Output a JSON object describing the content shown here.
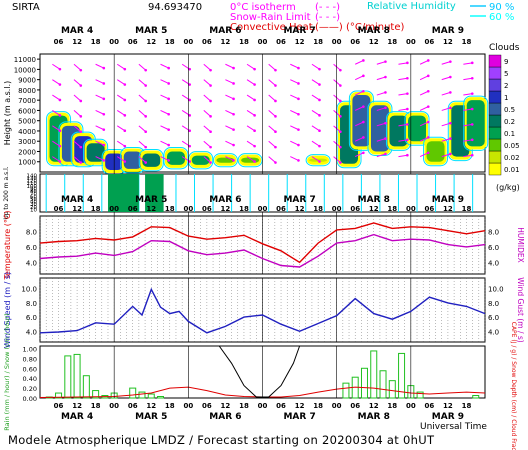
{
  "header": {
    "site": "SIRTA",
    "code": "94.693470",
    "legend": [
      {
        "label": "0°C isotherm",
        "style": "(- - -)",
        "color": "#ff00ff"
      },
      {
        "label": "Snow-Rain Limit",
        "style": "(- - -)",
        "color": "#ff00ff"
      },
      {
        "label": "Convective Heat.",
        "style": "(——) (°C/minute)",
        "color": "#e00000"
      }
    ],
    "humidity_title": "Relative Humidity",
    "humidity_levels": [
      {
        "value": "90 %",
        "color": "#00c8ff"
      },
      {
        "value": "60 %",
        "color": "#00ffff"
      }
    ]
  },
  "time_axis": {
    "day_labels": [
      "MAR 4",
      "MAR 5",
      "MAR 6",
      "MAR 7",
      "MAR 8",
      "MAR 9"
    ],
    "hour_labels": [
      "06",
      "12",
      "18",
      "00",
      "06",
      "12",
      "18",
      "00",
      "06",
      "12",
      "18",
      "00",
      "06",
      "12",
      "18",
      "00",
      "06",
      "12",
      "18",
      "00",
      "06",
      "12",
      "18"
    ],
    "xlabel": "Universal Time"
  },
  "footer": {
    "text": "Modele Atmospherique LMDZ / Forecast starting on 20200304 at 0hUT"
  },
  "chart_data": [
    {
      "type": "heatmap",
      "name": "clouds",
      "ylabel": "Height (m a.s.l.)",
      "yticks": [
        1000,
        2000,
        3000,
        4000,
        5000,
        6000,
        7000,
        8000,
        9000,
        10000,
        11000
      ],
      "ylim": [
        0,
        11500
      ],
      "low_ylabel": "Up to 200 m a.s.l.",
      "low_yticks": [
        10,
        20,
        30,
        40,
        50,
        60,
        70,
        80,
        90,
        100,
        110,
        120,
        130,
        140
      ],
      "colorbar_title": "Clouds",
      "colorbar_unit": "(g/kg)",
      "colorbar_ticks": [
        "0.01",
        "0.02",
        "0.05",
        "0.1",
        "0.2",
        "0.5",
        "1",
        "2",
        "5",
        "9"
      ],
      "colorbar_colors": [
        "#ffff00",
        "#c8e600",
        "#60c800",
        "#00a050",
        "#007860",
        "#3060a0",
        "#2030c0",
        "#6040e0",
        "#a040ff",
        "#e000e0"
      ],
      "cloud_cells": [
        {
          "t": 6,
          "z0": 1000,
          "z1": 5500,
          "level": 3
        },
        {
          "t": 10,
          "z0": 1000,
          "z1": 4500,
          "level": 5
        },
        {
          "t": 14,
          "z0": 900,
          "z1": 3500,
          "level": 6
        },
        {
          "t": 18,
          "z0": 1000,
          "z1": 2800,
          "level": 4
        },
        {
          "t": 24,
          "z0": 200,
          "z1": 1800,
          "level": 6
        },
        {
          "t": 30,
          "z0": 300,
          "z1": 2000,
          "level": 5
        },
        {
          "t": 36,
          "z0": 500,
          "z1": 1800,
          "level": 4
        },
        {
          "t": 44,
          "z0": 700,
          "z1": 2000,
          "level": 3
        },
        {
          "t": 52,
          "z0": 700,
          "z1": 1600,
          "level": 3
        },
        {
          "t": 60,
          "z0": 900,
          "z1": 1400,
          "level": 2
        },
        {
          "t": 68,
          "z0": 900,
          "z1": 1400,
          "level": 2
        },
        {
          "t": 90,
          "z0": 1000,
          "z1": 1300,
          "level": 1
        },
        {
          "t": 100,
          "z0": 800,
          "z1": 6500,
          "level": 4
        },
        {
          "t": 104,
          "z0": 2500,
          "z1": 7500,
          "level": 5
        },
        {
          "t": 110,
          "z0": 2000,
          "z1": 6500,
          "level": 5
        },
        {
          "t": 116,
          "z0": 2500,
          "z1": 5500,
          "level": 4
        },
        {
          "t": 122,
          "z0": 3000,
          "z1": 5500,
          "level": 3
        },
        {
          "t": 128,
          "z0": 1000,
          "z1": 3000,
          "level": 2
        },
        {
          "t": 136,
          "z0": 1500,
          "z1": 6500,
          "level": 4
        },
        {
          "t": 141,
          "z0": 2500,
          "z1": 7000,
          "level": 3
        }
      ]
    },
    {
      "type": "line",
      "name": "temperature",
      "ylabel": "Temperature (°C)",
      "right_label": "HUMIDEX",
      "yticks": [
        4.0,
        6.0,
        8.0
      ],
      "ylim": [
        2.5,
        10
      ],
      "x": [
        0,
        6,
        12,
        18,
        24,
        30,
        36,
        42,
        48,
        54,
        60,
        66,
        72,
        78,
        84,
        90,
        96,
        102,
        108,
        114,
        120,
        126,
        132,
        138,
        144
      ],
      "series": [
        {
          "color": "#e00000",
          "values": [
            6.5,
            6.7,
            6.8,
            7.1,
            6.9,
            7.3,
            8.6,
            8.5,
            7.4,
            7.0,
            7.2,
            7.5,
            6.4,
            5.5,
            4.0,
            6.5,
            8.2,
            8.4,
            9.1,
            8.4,
            8.6,
            8.5,
            8.1,
            7.7,
            8.1
          ]
        },
        {
          "color": "#c000c0",
          "values": [
            4.5,
            4.7,
            4.8,
            5.2,
            4.9,
            5.4,
            6.8,
            6.7,
            5.5,
            5.0,
            5.2,
            5.6,
            4.5,
            3.6,
            3.4,
            4.8,
            6.5,
            6.8,
            7.6,
            6.8,
            7.0,
            6.9,
            6.3,
            6.0,
            6.3
          ]
        }
      ]
    },
    {
      "type": "line",
      "name": "wind",
      "ylabel": "Wind Speed (m / s)",
      "right_label": "Wind Gust (m / s)",
      "yticks": [
        4.0,
        6.0,
        8.0,
        10.0
      ],
      "ylim": [
        2.5,
        11.5
      ],
      "x": [
        0,
        6,
        12,
        18,
        24,
        30,
        33,
        36,
        39,
        42,
        45,
        48,
        54,
        60,
        66,
        72,
        78,
        84,
        90,
        96,
        102,
        108,
        114,
        120,
        126,
        132,
        138,
        144
      ],
      "series": [
        {
          "color": "#2020c0",
          "values": [
            3.8,
            3.9,
            4.1,
            5.2,
            5.0,
            7.5,
            6.3,
            9.9,
            7.4,
            6.5,
            6.8,
            5.4,
            3.8,
            4.7,
            6.0,
            6.3,
            5.0,
            4.0,
            5.1,
            6.2,
            8.6,
            6.5,
            5.7,
            6.8,
            8.8,
            8.0,
            7.5,
            6.5
          ]
        }
      ]
    },
    {
      "type": "bar",
      "name": "precipitation",
      "ylabel": "Rain (mm / hour) / Snow (cm / hour)",
      "right_label": "CAPE (J / g) / Snow Depth (cm) / Cloud Fraction",
      "yticks": [
        0.0,
        0.2,
        0.4,
        0.6,
        0.8,
        1.0
      ],
      "ylim": [
        0,
        1.05
      ],
      "bars": [
        {
          "t": 3,
          "v": 0.02
        },
        {
          "t": 6,
          "v": 0.1
        },
        {
          "t": 9,
          "v": 0.85
        },
        {
          "t": 12,
          "v": 0.88
        },
        {
          "t": 15,
          "v": 0.45
        },
        {
          "t": 18,
          "v": 0.15
        },
        {
          "t": 21,
          "v": 0.05
        },
        {
          "t": 24,
          "v": 0.1
        },
        {
          "t": 30,
          "v": 0.2
        },
        {
          "t": 33,
          "v": 0.12
        },
        {
          "t": 36,
          "v": 0.08
        },
        {
          "t": 39,
          "v": 0.03
        },
        {
          "t": 99,
          "v": 0.3
        },
        {
          "t": 102,
          "v": 0.42
        },
        {
          "t": 105,
          "v": 0.6
        },
        {
          "t": 108,
          "v": 0.95
        },
        {
          "t": 111,
          "v": 0.55
        },
        {
          "t": 114,
          "v": 0.35
        },
        {
          "t": 117,
          "v": 0.9
        },
        {
          "t": 120,
          "v": 0.25
        },
        {
          "t": 123,
          "v": 0.12
        },
        {
          "t": 141,
          "v": 0.05
        }
      ],
      "cape_series": {
        "color": "#e00000",
        "x": [
          0,
          12,
          24,
          30,
          36,
          42,
          48,
          54,
          60,
          66,
          72,
          78,
          84,
          90,
          96,
          102,
          108,
          114,
          120,
          126,
          132,
          138,
          144
        ],
        "values": [
          0.01,
          0.02,
          0.03,
          0.06,
          0.1,
          0.2,
          0.22,
          0.15,
          0.06,
          0.03,
          0.02,
          0.02,
          0.05,
          0.12,
          0.18,
          0.22,
          0.2,
          0.15,
          0.1,
          0.08,
          0.1,
          0.12,
          0.1
        ]
      },
      "fraction_series": {
        "color": "#000000",
        "x": [
          58,
          62,
          66,
          70,
          74,
          78,
          82,
          84
        ],
        "values": [
          1.05,
          0.7,
          0.25,
          0.02,
          0.02,
          0.25,
          0.7,
          1.05
        ]
      }
    }
  ]
}
